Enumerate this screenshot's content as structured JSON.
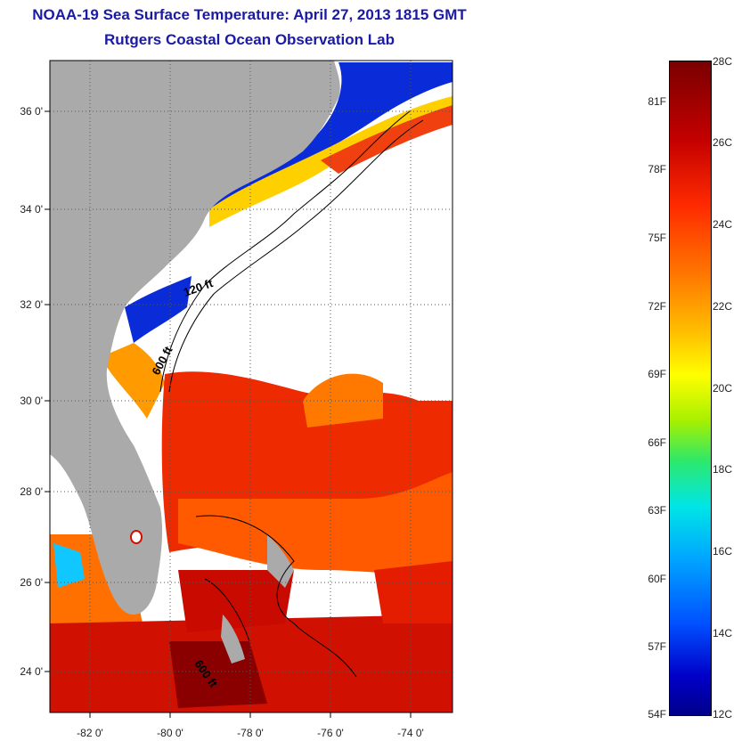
{
  "title": {
    "line1": "NOAA-19 Sea Surface Temperature:  April 27, 2013 1815 GMT",
    "line2": "Rutgers Coastal Ocean Observation Lab"
  },
  "map": {
    "lat_labels": [
      "36 0'",
      "34 0'",
      "32 0'",
      "30 0'",
      "28 0'",
      "26 0'",
      "24 0'"
    ],
    "lon_labels": [
      "-82 0'",
      "-80 0'",
      "-78 0'",
      "-76 0'",
      "-74 0'"
    ],
    "isobath_labels": [
      "120 ft",
      "600 ft",
      "600 ft"
    ],
    "colors": {
      "land": "#aaaaaa",
      "cloud": "#ffffff",
      "warm": "#e02000",
      "cold": "#0010c0"
    }
  },
  "colorbar": {
    "celsius_labels": [
      "28C",
      "26C",
      "24C",
      "22C",
      "20C",
      "18C",
      "16C",
      "14C",
      "12C"
    ],
    "fahrenheit_labels": [
      "81F",
      "78F",
      "75F",
      "72F",
      "69F",
      "66F",
      "63F",
      "60F",
      "57F",
      "54F"
    ],
    "min_c": 12,
    "max_c": 28
  }
}
